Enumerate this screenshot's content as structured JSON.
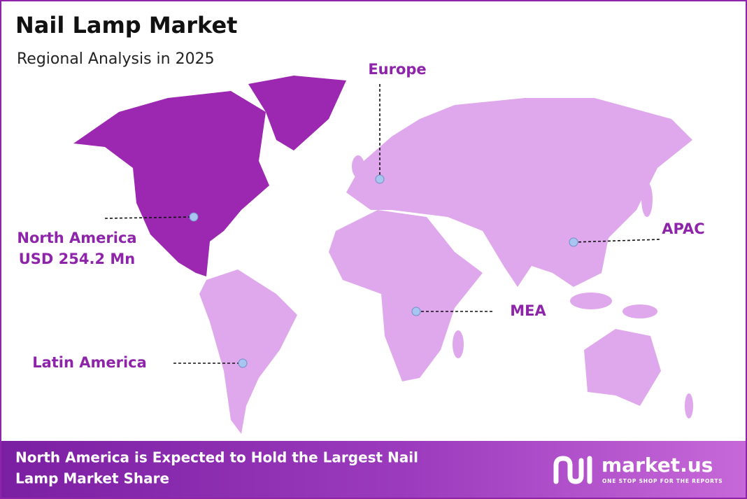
{
  "header": {
    "title": "Nail Lamp Market",
    "subtitle": "Regional Analysis in 2025"
  },
  "regions": [
    {
      "name": "North America",
      "value": "USD 254.2 Mn"
    },
    {
      "name": "Europe"
    },
    {
      "name": "APAC"
    },
    {
      "name": "MEA"
    },
    {
      "name": "Latin America"
    }
  ],
  "footer": {
    "text_line1": "North America is Expected to Hold the Largest Nail",
    "text_line2": "Lamp Market Share"
  },
  "logo": {
    "name": "market.us",
    "tagline": "ONE STOP SHOP FOR THE REPORTS"
  }
}
